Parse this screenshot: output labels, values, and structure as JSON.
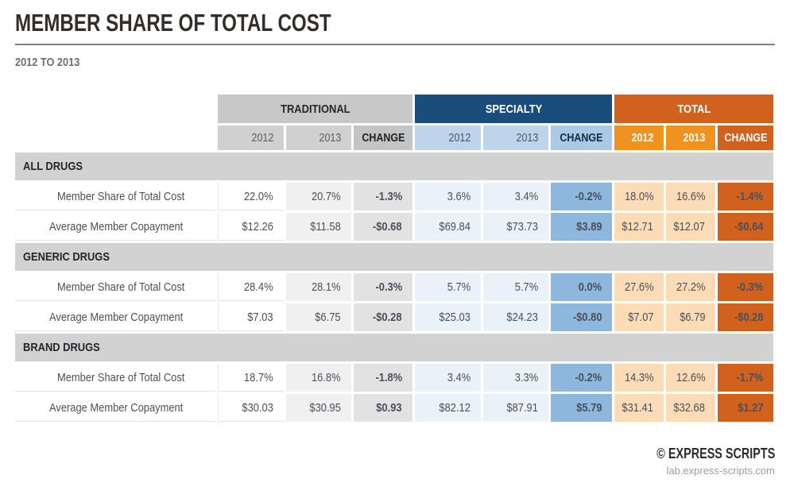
{
  "page": {
    "title": "MEMBER SHARE OF TOTAL COST",
    "subtitle": "2012 TO 2013",
    "footer": {
      "brand": "© EXPRESS SCRIPTS",
      "site": "lab.express-scripts.com"
    }
  },
  "colors": {
    "traditional_header": "#c8c8c8",
    "traditional_change_cell": "#e2e2e2",
    "specialty_header": "#1b4d7c",
    "specialty_subheader": "#bdd4ea",
    "specialty_data_cell": "#e9f1f9",
    "specialty_change_cell": "#8db7dc",
    "total_header": "#d2611d",
    "total_subheader": "#f0921f",
    "total_data_cell": "#fcdcb6",
    "section_band": "#d2d2d2"
  },
  "chart_data": {
    "type": "table",
    "title": "MEMBER SHARE OF TOTAL COST",
    "subtitle": "2012 TO 2013",
    "column_groups": [
      {
        "label": "TRADITIONAL",
        "theme": "gray"
      },
      {
        "label": "SPECIALTY",
        "theme": "blue"
      },
      {
        "label": "TOTAL",
        "theme": "orange"
      }
    ],
    "subheaders": [
      "2012",
      "2013",
      "CHANGE"
    ],
    "sections": [
      {
        "label": "ALL DRUGS",
        "rows": [
          {
            "label": "Member Share of Total Cost",
            "traditional": [
              "22.0%",
              "20.7%",
              "-1.3%"
            ],
            "specialty": [
              "3.6%",
              "3.4%",
              "-0.2%"
            ],
            "total": [
              "18.0%",
              "16.6%",
              "-1.4%"
            ]
          },
          {
            "label": "Average Member Copayment",
            "traditional": [
              "$12.26",
              "$11.58",
              "-$0.68"
            ],
            "specialty": [
              "$69.84",
              "$73.73",
              "$3.89"
            ],
            "total": [
              "$12.71",
              "$12.07",
              "-$0.64"
            ]
          }
        ]
      },
      {
        "label": "GENERIC DRUGS",
        "rows": [
          {
            "label": "Member Share of Total Cost",
            "traditional": [
              "28.4%",
              "28.1%",
              "-0.3%"
            ],
            "specialty": [
              "5.7%",
              "5.7%",
              "0.0%"
            ],
            "total": [
              "27.6%",
              "27.2%",
              "-0.3%"
            ]
          },
          {
            "label": "Average Member Copayment",
            "traditional": [
              "$7.03",
              "$6.75",
              "-$0.28"
            ],
            "specialty": [
              "$25.03",
              "$24.23",
              "-$0.80"
            ],
            "total": [
              "$7.07",
              "$6.79",
              "-$0.28"
            ]
          }
        ]
      },
      {
        "label": "BRAND DRUGS",
        "rows": [
          {
            "label": "Member Share of Total Cost",
            "traditional": [
              "18.7%",
              "16.8%",
              "-1.8%"
            ],
            "specialty": [
              "3.4%",
              "3.3%",
              "-0.2%"
            ],
            "total": [
              "14.3%",
              "12.6%",
              "-1.7%"
            ]
          },
          {
            "label": "Average Member Copayment",
            "traditional": [
              "$30.03",
              "$30.95",
              "$0.93"
            ],
            "specialty": [
              "$82.12",
              "$87.91",
              "$5.79"
            ],
            "total": [
              "$31.41",
              "$32.68",
              "$1.27"
            ]
          }
        ]
      }
    ]
  }
}
